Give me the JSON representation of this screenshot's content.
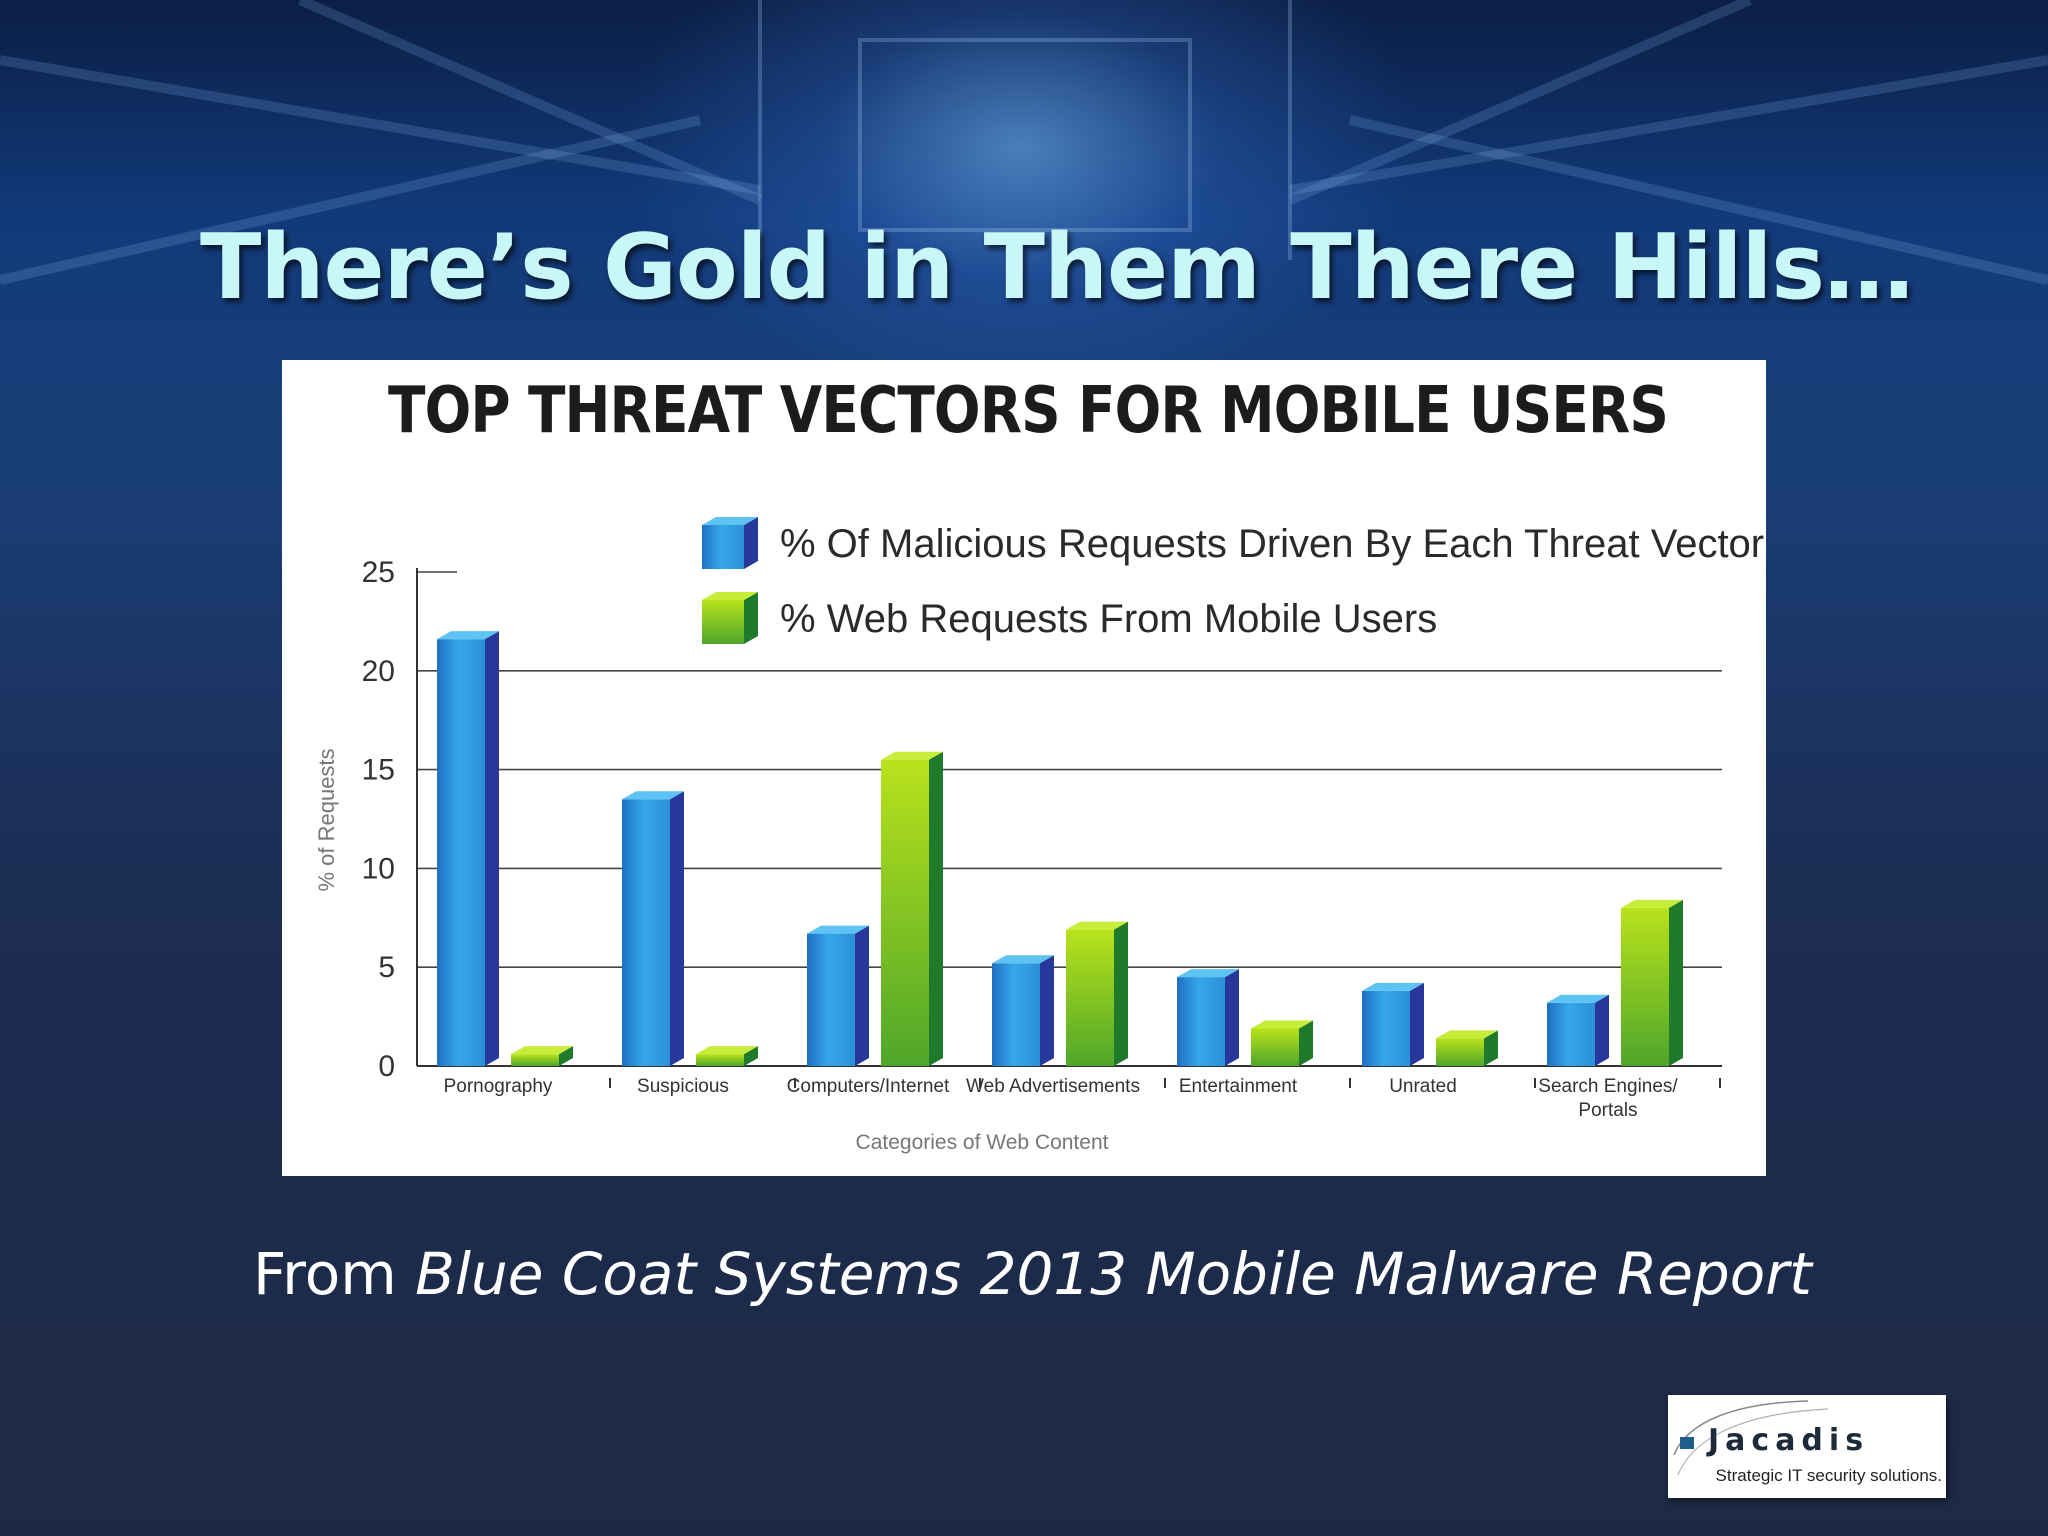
{
  "slide": {
    "title": "There’s Gold in Them There Hills…",
    "source_prefix": "From ",
    "source_italic": "Blue Coat Systems 2013 Mobile Malware Report"
  },
  "logo": {
    "name": "Jacadis",
    "tagline": "Strategic IT security solutions."
  },
  "colors": {
    "title": "#c9f6f7",
    "series_blue": "#2b8fd8",
    "series_green": "#7fc31c"
  },
  "chart_data": {
    "type": "bar",
    "title": "TOP THREAT VECTORS FOR MOBILE USERS",
    "xlabel": "Categories of Web Content",
    "ylabel": "% of Requests",
    "ylim": [
      0,
      25
    ],
    "yticks": [
      0,
      5,
      10,
      15,
      20,
      25
    ],
    "grid": true,
    "legend_position": "top-right",
    "categories": [
      "Pornography",
      "Suspicious",
      "Computers/Internet",
      "Web Advertisements",
      "Entertainment",
      "Unrated",
      "Search Engines/ Portals"
    ],
    "series": [
      {
        "name": "% Of Malicious Requests Driven By Each Threat Vector",
        "values": [
          21.6,
          13.5,
          6.7,
          5.2,
          4.5,
          3.8,
          3.2
        ]
      },
      {
        "name": "% Web Requests From Mobile Users",
        "values": [
          0.6,
          0.6,
          15.5,
          6.9,
          1.9,
          1.4,
          8.0
        ]
      }
    ]
  }
}
